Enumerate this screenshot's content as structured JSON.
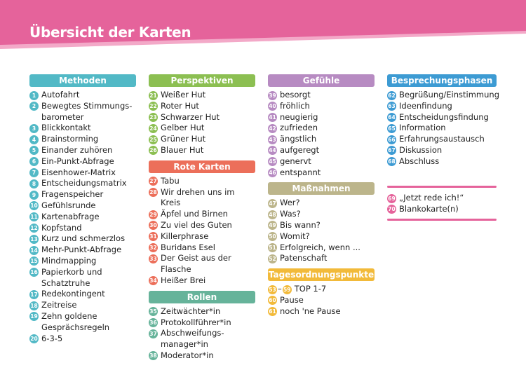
{
  "title": "Übersicht der Karten",
  "colors": {
    "banner": "#e5639b",
    "banner_shade": "#f3a9c8",
    "methoden": "#52b9c6",
    "perspektiven": "#8cbf52",
    "rote_karten": "#ec6f5a",
    "rollen": "#66b39a",
    "gefuehle": "#b78bc2",
    "massnahmen": "#bcb58b",
    "tagesordnungspunkte": "#f2ba3a",
    "besprechungsphasen": "#3d9bd3",
    "extra": "#e5639b"
  },
  "sections": {
    "methoden": {
      "header": "Methoden",
      "items": [
        {
          "n": "1",
          "label": "Autofahrt"
        },
        {
          "n": "2",
          "label": "Bewegtes Stimmungs-barometer"
        },
        {
          "n": "3",
          "label": "Blickkontakt"
        },
        {
          "n": "4",
          "label": "Brainstorming"
        },
        {
          "n": "5",
          "label": "Einander zuhören"
        },
        {
          "n": "6",
          "label": "Ein-Punkt-Abfrage"
        },
        {
          "n": "7",
          "label": "Eisenhower-Matrix"
        },
        {
          "n": "8",
          "label": "Entscheidungsmatrix"
        },
        {
          "n": "9",
          "label": "Fragenspeicher"
        },
        {
          "n": "10",
          "label": "Gefühlsrunde"
        },
        {
          "n": "11",
          "label": "Kartenabfrage"
        },
        {
          "n": "12",
          "label": "Kopfstand"
        },
        {
          "n": "13",
          "label": "Kurz und schmerzlos"
        },
        {
          "n": "14",
          "label": "Mehr-Punkt-Abfrage"
        },
        {
          "n": "15",
          "label": "Mindmapping"
        },
        {
          "n": "16",
          "label": "Papierkorb und Schatztruhe"
        },
        {
          "n": "17",
          "label": "Redekontingent"
        },
        {
          "n": "18",
          "label": "Zeitreise"
        },
        {
          "n": "19",
          "label": "Zehn goldene Gesprächsregeln"
        },
        {
          "n": "20",
          "label": "6-3-5"
        }
      ]
    },
    "perspektiven": {
      "header": "Perspektiven",
      "items": [
        {
          "n": "21",
          "label": "Weißer Hut"
        },
        {
          "n": "22",
          "label": "Roter Hut"
        },
        {
          "n": "23",
          "label": "Schwarzer Hut"
        },
        {
          "n": "24",
          "label": "Gelber Hut"
        },
        {
          "n": "25",
          "label": "Grüner Hut"
        },
        {
          "n": "26",
          "label": "Blauer Hut"
        }
      ]
    },
    "rote_karten": {
      "header": "Rote Karten",
      "items": [
        {
          "n": "27",
          "label": "Tabu"
        },
        {
          "n": "28",
          "label": "Wir drehen uns im Kreis"
        },
        {
          "n": "29",
          "label": "Äpfel und Birnen"
        },
        {
          "n": "30",
          "label": "Zu viel des Guten"
        },
        {
          "n": "31",
          "label": "Killerphrase"
        },
        {
          "n": "32",
          "label": "Buridans Esel"
        },
        {
          "n": "33",
          "label": "Der Geist aus der Flasche"
        },
        {
          "n": "34",
          "label": "Heißer Brei"
        }
      ]
    },
    "rollen": {
      "header": "Rollen",
      "items": [
        {
          "n": "35",
          "label": "Zeitwächter*in"
        },
        {
          "n": "36",
          "label": "Protokollführer*in"
        },
        {
          "n": "37",
          "label": "Abschweifungs-manager*in"
        },
        {
          "n": "38",
          "label": "Moderator*in"
        }
      ]
    },
    "gefuehle": {
      "header": "Gefühle",
      "items": [
        {
          "n": "39",
          "label": "besorgt"
        },
        {
          "n": "40",
          "label": "fröhlich"
        },
        {
          "n": "41",
          "label": "neugierig"
        },
        {
          "n": "42",
          "label": "zufrieden"
        },
        {
          "n": "43",
          "label": "ängstlich"
        },
        {
          "n": "44",
          "label": "aufgeregt"
        },
        {
          "n": "45",
          "label": "genervt"
        },
        {
          "n": "46",
          "label": "entspannt"
        }
      ]
    },
    "massnahmen": {
      "header": "Maßnahmen",
      "items": [
        {
          "n": "47",
          "label": "Wer?"
        },
        {
          "n": "48",
          "label": "Was?"
        },
        {
          "n": "49",
          "label": "Bis wann?"
        },
        {
          "n": "50",
          "label": "Womit?"
        },
        {
          "n": "51",
          "label": "Erfolgreich, wenn ..."
        },
        {
          "n": "52",
          "label": "Patenschaft"
        }
      ]
    },
    "tagesordnungspunkte": {
      "header": "Tagesordnungspunkte",
      "range": {
        "from": "53",
        "dash": "–",
        "to": "59",
        "label": "TOP 1-7"
      },
      "items": [
        {
          "n": "60",
          "label": "Pause"
        },
        {
          "n": "61",
          "label": "noch 'ne Pause"
        }
      ]
    },
    "besprechungsphasen": {
      "header": "Besprechungsphasen",
      "items": [
        {
          "n": "62",
          "label": "Begrüßung/Einstimmung"
        },
        {
          "n": "63",
          "label": "Ideenfindung"
        },
        {
          "n": "64",
          "label": "Entscheidungsfindung"
        },
        {
          "n": "65",
          "label": "Information"
        },
        {
          "n": "66",
          "label": "Erfahrungsaustausch"
        },
        {
          "n": "67",
          "label": "Diskussion"
        },
        {
          "n": "68",
          "label": "Abschluss"
        }
      ]
    },
    "extra": {
      "items": [
        {
          "n": "69",
          "label": "„Jetzt rede ich!“"
        },
        {
          "n": "70",
          "label": "Blankokarte(n)"
        }
      ]
    }
  }
}
